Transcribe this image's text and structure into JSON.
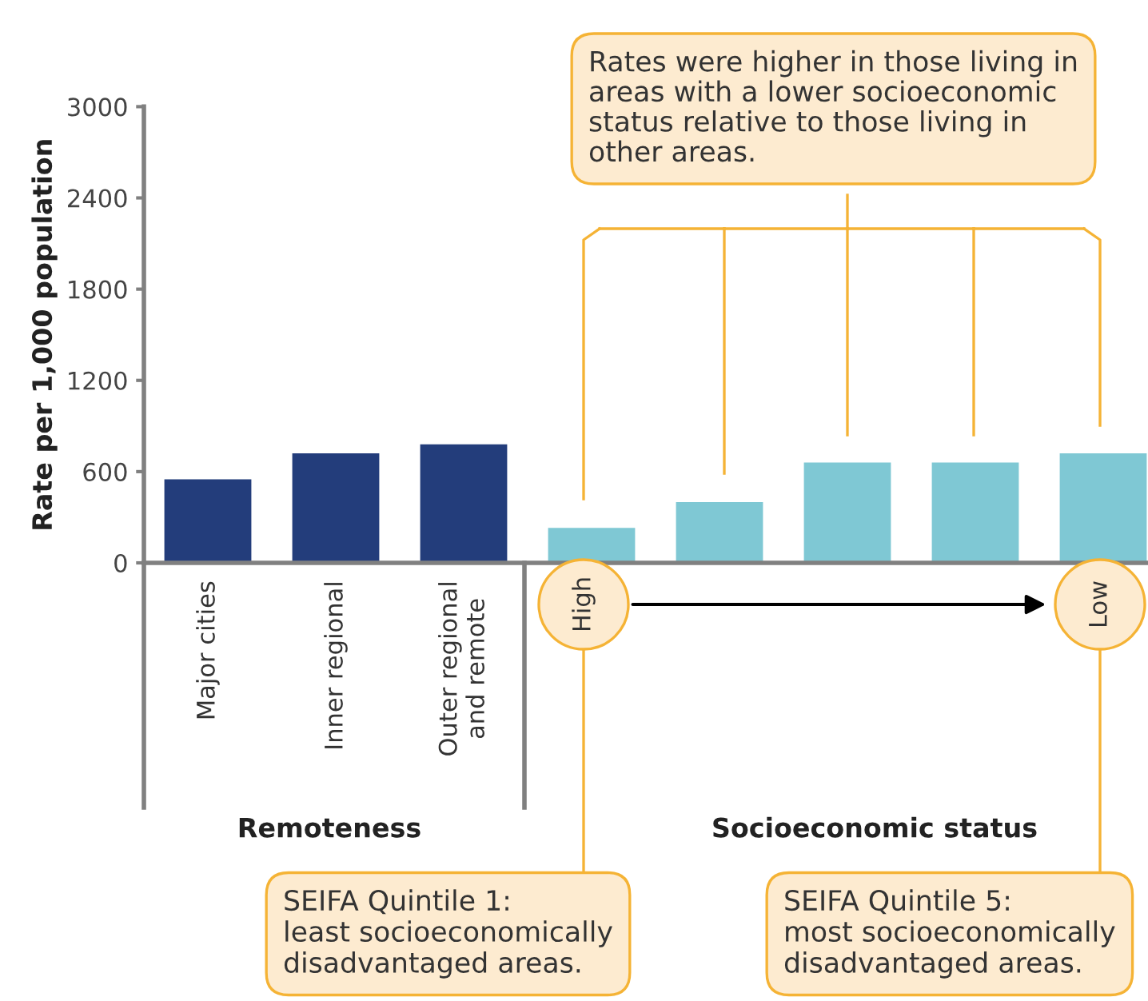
{
  "chart_data": {
    "type": "bar",
    "ylabel": "Rate per 1,000 population",
    "categories": [
      "Major cities",
      "Inner regional",
      "Outer regional\nand remote",
      null,
      null,
      null,
      null,
      null
    ],
    "values": [
      550,
      720,
      780,
      230,
      400,
      660,
      660,
      720
    ],
    "colors": [
      "#233d7b",
      "#233d7b",
      "#233d7b",
      "#7fc8d4",
      "#7fc8d4",
      "#7fc8d4",
      "#7fc8d4",
      "#7fc8d4"
    ],
    "ylim": [
      0,
      3000
    ],
    "yticks": [
      0,
      600,
      1200,
      1800,
      2400,
      3000
    ],
    "grid": false,
    "legend": false,
    "annotations": [
      "Remoteness",
      "Socioeconomic status",
      "Rates were higher in those living in\nareas with a lower socioeconomic\nstatus relative to those living in\nother areas.",
      "High",
      "Low",
      "SEIFA Quintile 1:\nleast socioeconomically\ndisadvantaged areas.",
      "SEIFA Quintile 5:\nmost socioeconomically\ndisadvantaged areas."
    ]
  }
}
